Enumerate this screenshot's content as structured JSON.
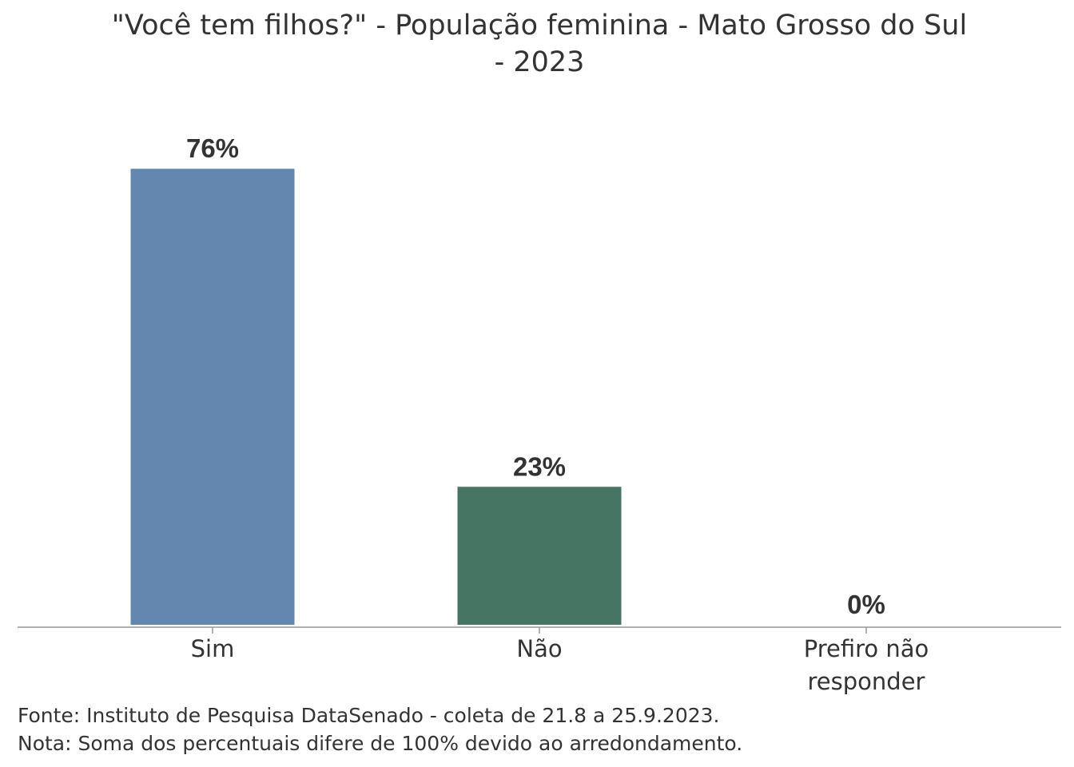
{
  "chart_data": {
    "type": "bar",
    "title_lines": [
      "\"Você tem filhos?\" - População feminina - Mato Grosso do Sul",
      "- 2023"
    ],
    "categories": [
      [
        "Sim"
      ],
      [
        "Não"
      ],
      [
        "Prefiro não",
        "responder"
      ]
    ],
    "values": [
      76,
      23,
      0
    ],
    "data_labels": [
      "76%",
      "23%",
      "0%"
    ],
    "colors": [
      "#6487b0",
      "#467564",
      "#999999"
    ],
    "ylim": [
      0,
      100
    ],
    "xlabel": "",
    "ylabel": "",
    "grid": false,
    "legend": "none"
  },
  "footer": {
    "source": "Fonte: Instituto de Pesquisa DataSenado - coleta de 21.8 a 25.9.2023.",
    "note": "Nota: Soma dos percentuais difere de 100% devido ao arredondamento."
  }
}
